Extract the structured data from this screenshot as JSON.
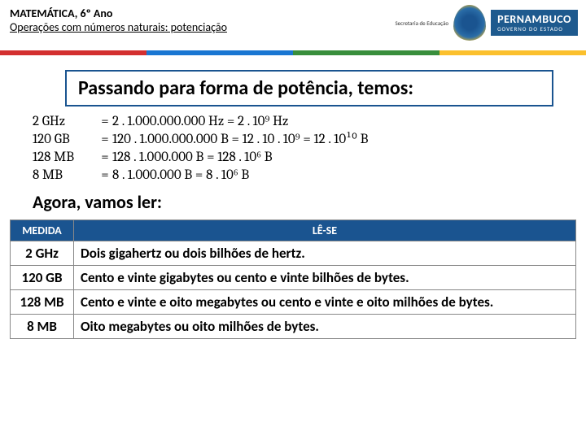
{
  "header": {
    "title": "MATEMÁTICA, 6º Ano",
    "subtitle": "Operações com números naturais: potenciação",
    "logo_secretaria": "Secretaria de Educação",
    "logo_state": "PERNAMBUCO",
    "logo_gov": "GOVERNO DO ESTADO"
  },
  "section_title": "Passando para forma de potência, temos:",
  "equations": [
    {
      "label": "2 GHz",
      "eq": "=",
      "body": "2 . 1.000.000.000 Hz = 2 . 10⁹ Hz"
    },
    {
      "label": "120 GB",
      "eq": "=",
      "body": "120 . 1.000.000.000 B = 12 . 10 . 10⁹ = 12 . 10¹⁰  B"
    },
    {
      "label": "128 MB",
      "eq": "=",
      "body": "128 . 1.000.000 B = 128 . 10⁶  B"
    },
    {
      "label": "8 MB",
      "eq": "=",
      "body": "8 . 1.000.000 B = 8 . 10⁶  B"
    }
  ],
  "subtitle": "Agora, vamos ler:",
  "table": {
    "headers": {
      "col1": "MEDIDA",
      "col2": "LÊ-SE"
    },
    "rows": [
      {
        "m": "2 GHz",
        "r": "Dois gigahertz ou dois bilhões de hertz."
      },
      {
        "m": "120 GB",
        "r": "Cento e vinte gigabytes ou cento e vinte bilhões de bytes."
      },
      {
        "m": "128 MB",
        "r": "Cento e vinte e oito megabytes ou cento e vinte e oito milhões de bytes."
      },
      {
        "m": "8 MB",
        "r": "Oito megabytes ou oito milhões de bytes."
      }
    ]
  }
}
